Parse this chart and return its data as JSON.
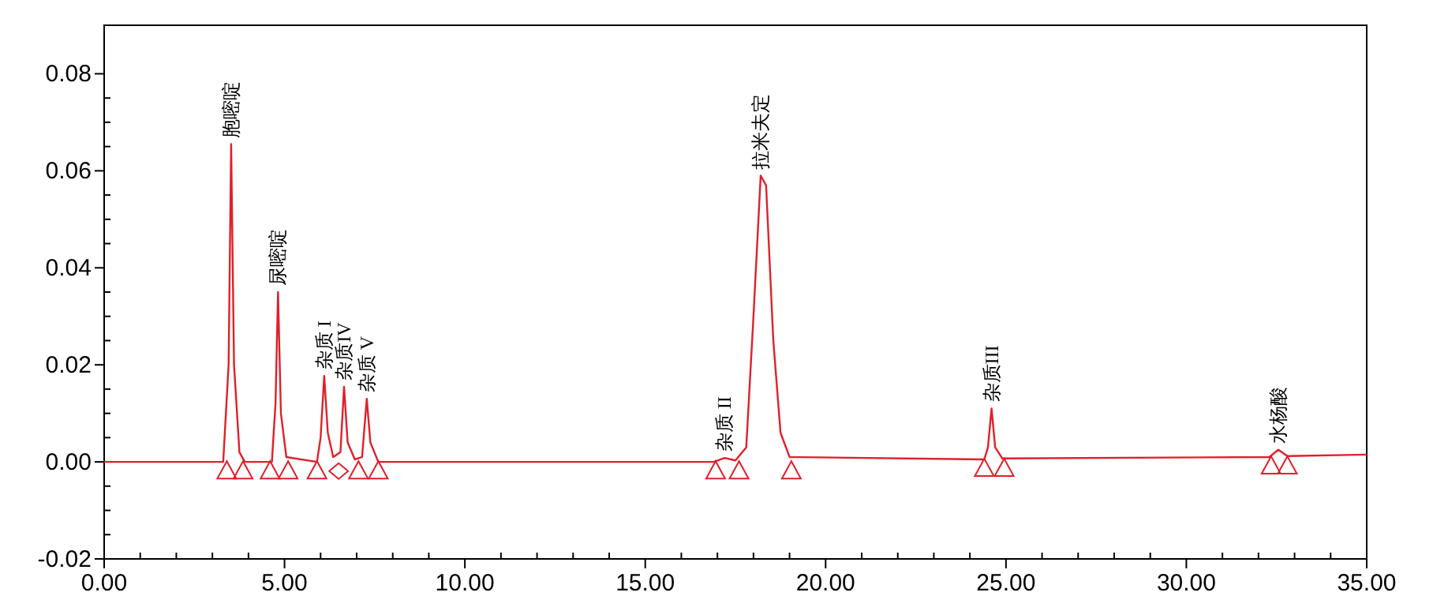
{
  "chart_data": {
    "type": "line",
    "xlim": [
      0,
      35
    ],
    "ylim": [
      -0.02,
      0.09
    ],
    "xticks": [
      {
        "value": 0,
        "label": "0.00"
      },
      {
        "value": 5,
        "label": "5.00"
      },
      {
        "value": 10,
        "label": "10.00"
      },
      {
        "value": 15,
        "label": "15.00"
      },
      {
        "value": 20,
        "label": "20.00"
      },
      {
        "value": 25,
        "label": "25.00"
      },
      {
        "value": 30,
        "label": "30.00"
      },
      {
        "value": 35,
        "label": "35.00"
      }
    ],
    "yticks": [
      {
        "value": -0.02,
        "label": "-0.02"
      },
      {
        "value": 0,
        "label": "0.00"
      },
      {
        "value": 0.02,
        "label": "0.02"
      },
      {
        "value": 0.04,
        "label": "0.04"
      },
      {
        "value": 0.06,
        "label": "0.06"
      },
      {
        "value": 0.08,
        "label": "0.08"
      }
    ],
    "grid": false,
    "series": [
      {
        "color": "#e0202a",
        "marker": "none",
        "x": [
          0,
          3.3,
          3.45,
          3.52,
          3.6,
          3.75,
          3.9,
          4.65,
          4.75,
          4.82,
          4.9,
          5.05,
          5.9,
          6.0,
          6.1,
          6.2,
          6.35,
          6.55,
          6.65,
          6.75,
          6.95,
          7.15,
          7.28,
          7.38,
          7.6,
          16.9,
          17.2,
          17.5,
          17.8,
          18.0,
          18.2,
          18.35,
          18.55,
          18.75,
          19.0,
          24.4,
          24.5,
          24.6,
          24.7,
          24.9,
          32.3,
          32.55,
          32.8,
          35
        ],
        "values": [
          0,
          0,
          0.02,
          0.0655,
          0.02,
          0.002,
          0,
          0,
          0.012,
          0.035,
          0.01,
          0.001,
          0,
          0.005,
          0.0177,
          0.006,
          0.001,
          0.002,
          0.0155,
          0.004,
          0.0005,
          0.001,
          0.013,
          0.004,
          0,
          0,
          0.0008,
          0.0003,
          0.003,
          0.03,
          0.059,
          0.057,
          0.025,
          0.006,
          0.001,
          0.0005,
          0.003,
          0.011,
          0.003,
          0.0007,
          0.001,
          0.0025,
          0.0012,
          0.0015
        ]
      },
      {
        "type": "scatter",
        "color": "#e0202a",
        "marker": "triangle",
        "x": [
          3.4,
          3.85,
          4.6,
          5.1,
          5.9,
          7.05,
          7.6,
          16.95,
          17.6,
          19.05,
          24.4,
          24.95,
          32.35,
          32.8
        ],
        "values": [
          -0.0018,
          -0.0018,
          -0.0018,
          -0.0018,
          -0.0018,
          -0.0018,
          -0.0018,
          -0.0018,
          -0.0018,
          -0.0018,
          -0.0013,
          -0.0013,
          -0.0008,
          -0.0008
        ]
      },
      {
        "type": "scatter",
        "color": "#e0202a",
        "marker": "diamond",
        "x": [
          6.5
        ],
        "values": [
          -0.0019
        ]
      }
    ],
    "annotations": [
      {
        "text": "胞嘧啶",
        "x": 3.52,
        "y": 0.0655
      },
      {
        "text": "尿嘧啶",
        "x": 4.82,
        "y": 0.035
      },
      {
        "text": "杂质 I",
        "x": 6.1,
        "y": 0.0177
      },
      {
        "text": "杂质IV",
        "x": 6.65,
        "y": 0.0155
      },
      {
        "text": "杂质 V",
        "x": 7.28,
        "y": 0.013
      },
      {
        "text": "杂质 II",
        "x": 17.2,
        "y": 0.0008
      },
      {
        "text": "拉米夫定",
        "x": 18.2,
        "y": 0.059
      },
      {
        "text": "杂质III",
        "x": 24.6,
        "y": 0.011
      },
      {
        "text": "水杨酸",
        "x": 32.55,
        "y": 0.0025
      }
    ]
  }
}
